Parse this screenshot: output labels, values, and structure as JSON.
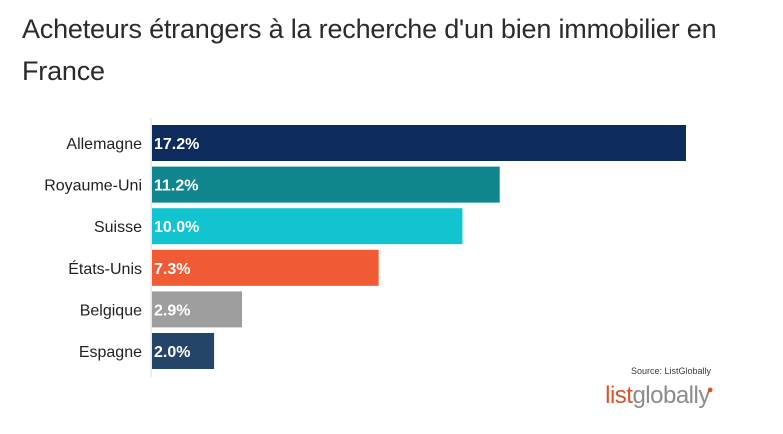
{
  "chart_data": {
    "type": "bar",
    "orientation": "horizontal",
    "title": "Acheteurs étrangers à la recherche d'un bien immobilier en France",
    "categories": [
      "Allemagne",
      "Royaume-Uni",
      "Suisse",
      "États-Unis",
      "Belgique",
      "Espagne"
    ],
    "values": [
      17.2,
      11.2,
      10.0,
      7.3,
      2.9,
      2.0
    ],
    "labels": [
      "17.2%",
      "11.2%",
      "10.0%",
      "7.3%",
      "2.9%",
      "2.0%"
    ],
    "colors": [
      "#0d2b5c",
      "#0f858e",
      "#12c4cf",
      "#f05a35",
      "#9e9e9e",
      "#25446a"
    ],
    "xlim": [
      0,
      17.2
    ],
    "xlabel": "",
    "ylabel": "",
    "legend": "none",
    "grid": false
  },
  "source": "Source: ListGlobally",
  "logo": {
    "part1": "list",
    "part2": "globally",
    "accent_color": "#d9542b",
    "secondary_color": "#8c8c8c"
  }
}
